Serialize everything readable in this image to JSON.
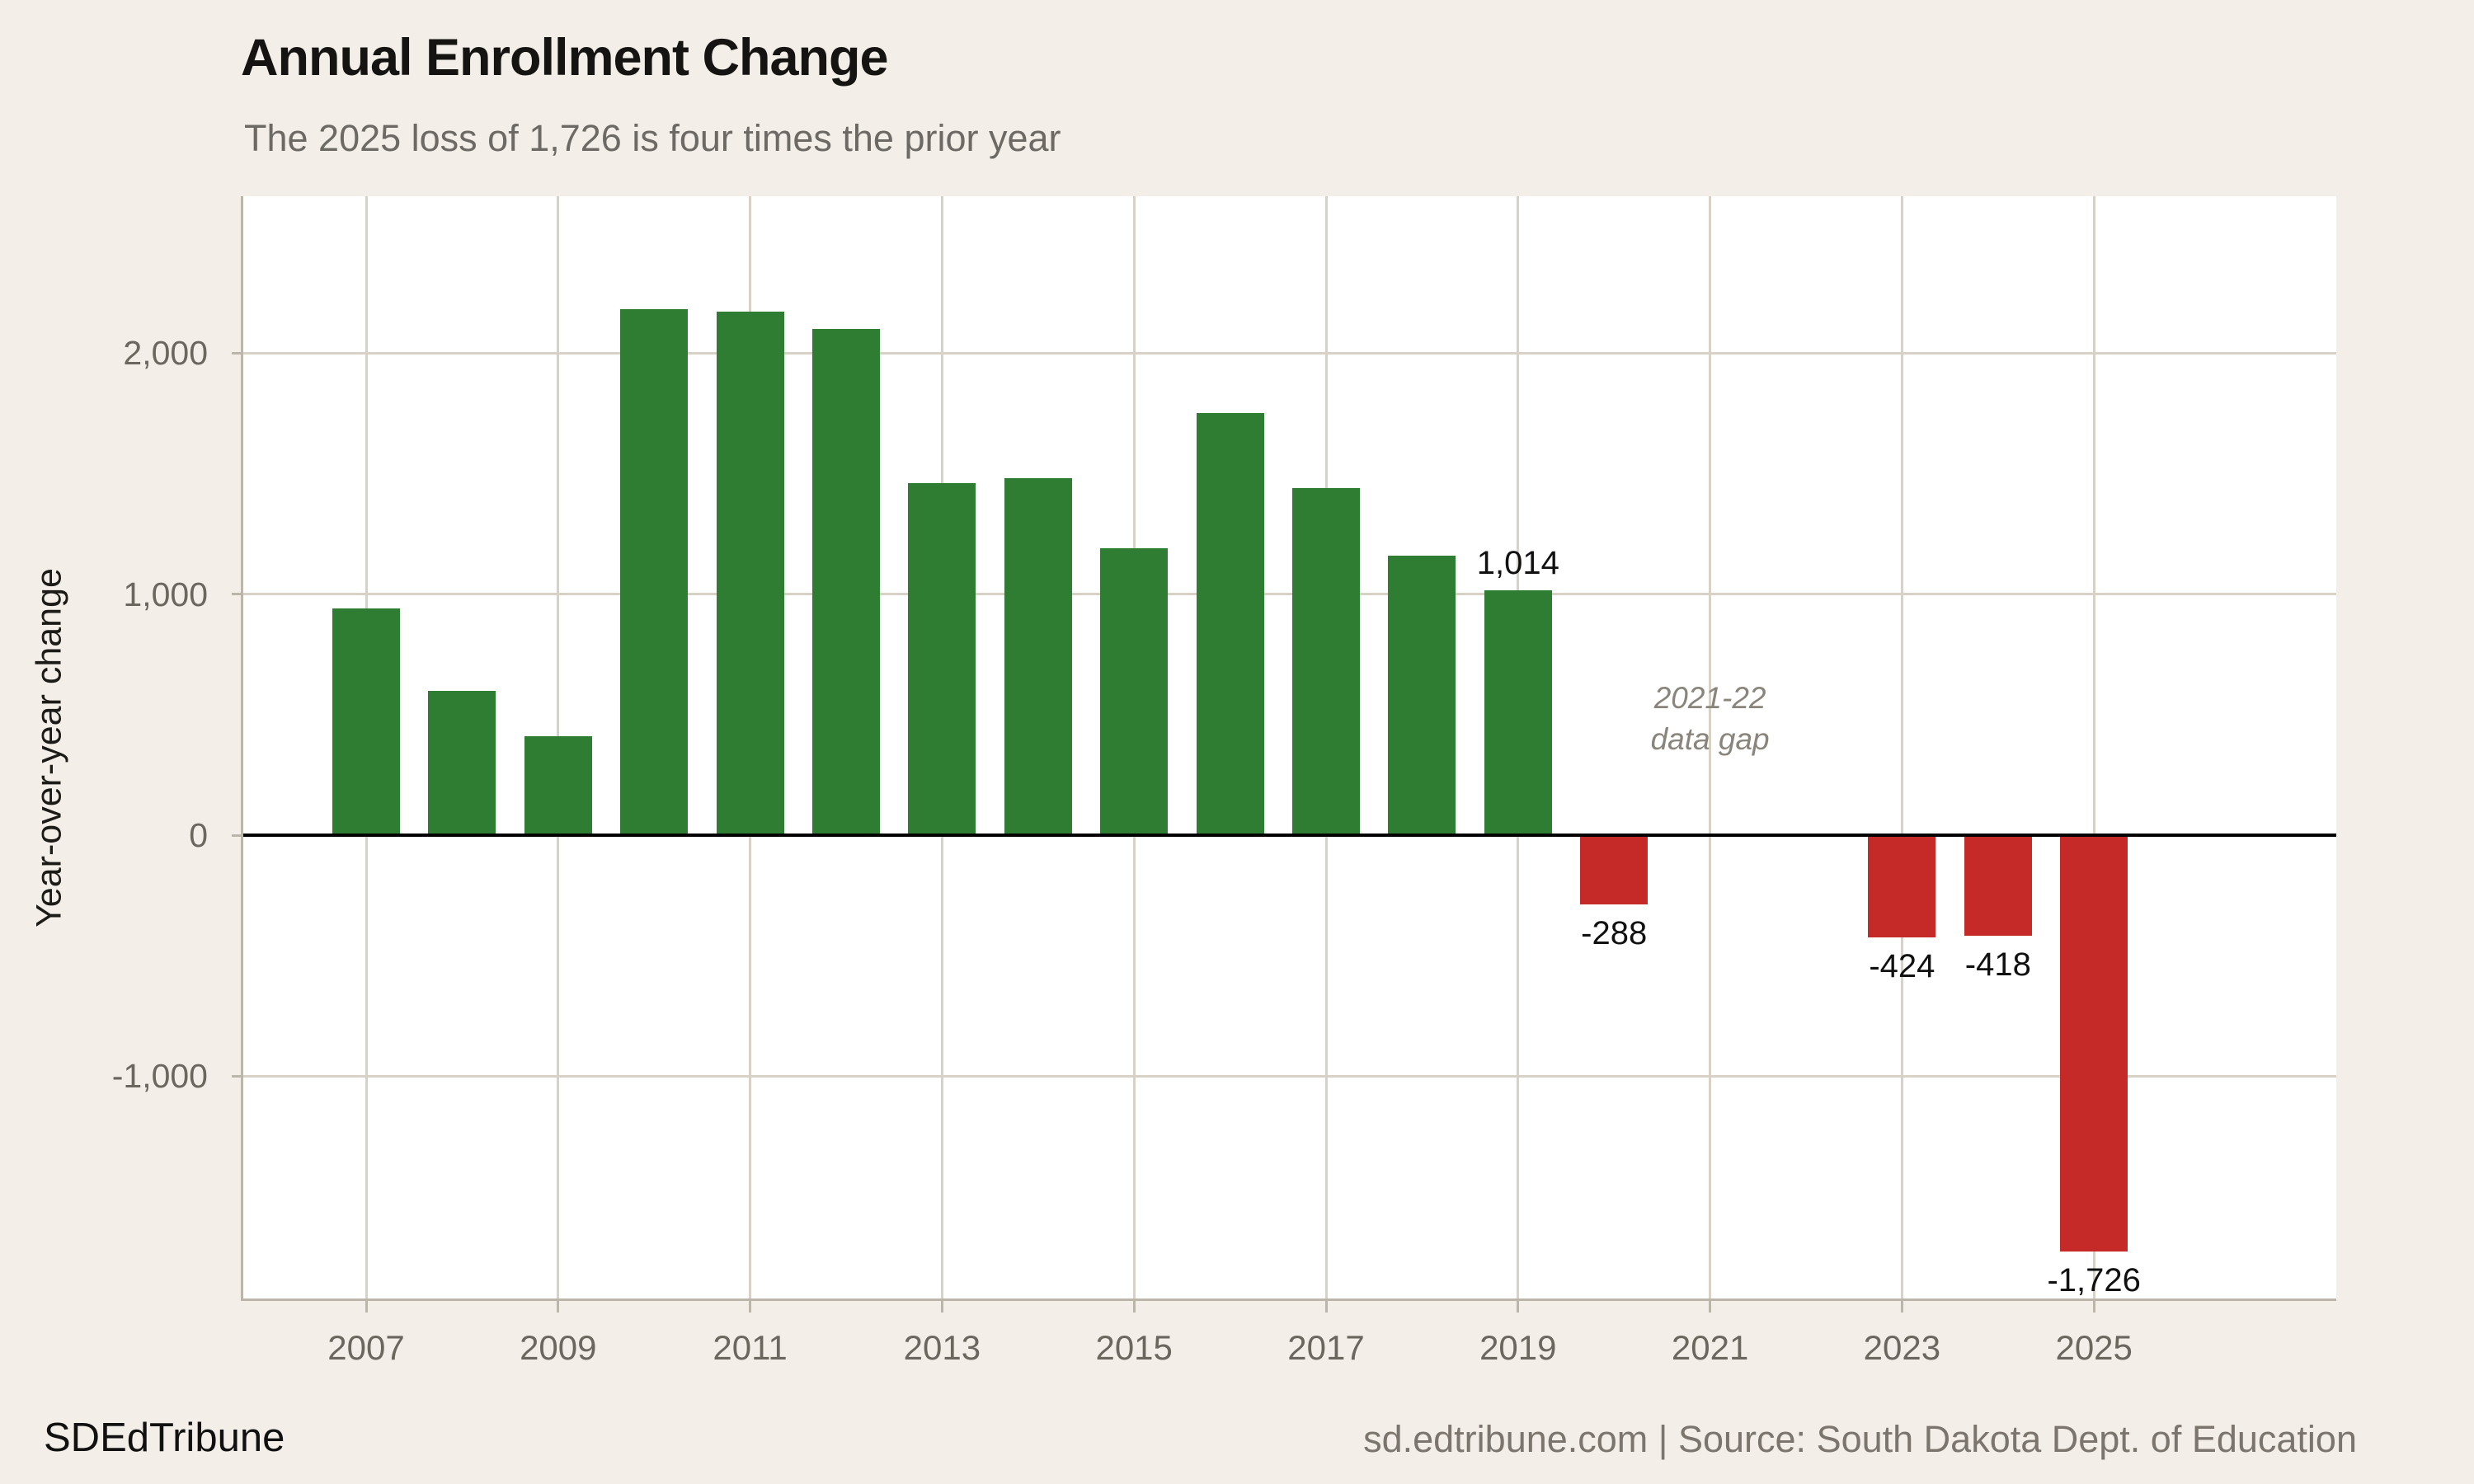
{
  "header": {
    "title": "Annual Enrollment Change",
    "subtitle": "The 2025 loss of 1,726 is four times the prior year"
  },
  "footer": {
    "brand": "SDEdTribune",
    "source": "sd.edtribune.com | Source: South Dakota Dept. of Education"
  },
  "annotation": {
    "line1": "2021-22",
    "line2": "data gap",
    "anchor_year": 2021
  },
  "colors": {
    "background": "#f3efe8",
    "plot_background": "#ffffff",
    "positive_bar": "#2e7d32",
    "negative_bar": "#c62a28",
    "gridline": "#d8d2c6",
    "spine": "#bcb5aa",
    "zero_line": "#000000",
    "title_text": "#161412",
    "subtitle_text": "#6d6a66",
    "tick_label": "#6b675f",
    "axis_title": "#1d1b18",
    "value_label": "#111111",
    "annotation_text": "#8a857b",
    "footer_brand": "#111111",
    "footer_source": "#7b756d"
  },
  "chart_data": {
    "type": "bar",
    "title": "Annual Enrollment Change",
    "subtitle": "The 2025 loss of 1,726 is four times the prior year",
    "xlabel": "",
    "ylabel": "Year-over-year change",
    "categories": [
      2007,
      2008,
      2009,
      2010,
      2011,
      2012,
      2013,
      2014,
      2015,
      2016,
      2017,
      2018,
      2019,
      2020,
      2021,
      2022,
      2023,
      2024,
      2025
    ],
    "values": [
      940,
      600,
      410,
      2180,
      2170,
      2100,
      1460,
      1480,
      1190,
      1750,
      1440,
      1160,
      1014,
      -288,
      null,
      null,
      -424,
      -418,
      -1726
    ],
    "data_labels": {
      "2019": "1,014",
      "2020": "-288",
      "2023": "-424",
      "2024": "-418",
      "2025": "-1,726"
    },
    "ylim": [
      -1925,
      2650
    ],
    "yticks": [
      {
        "value": 2000,
        "label": "2,000"
      },
      {
        "value": 1000,
        "label": "1,000"
      },
      {
        "value": 0,
        "label": "0"
      },
      {
        "value": -1000,
        "label": "-1,000"
      }
    ],
    "xticks": [
      {
        "year": 2007,
        "label": "2007"
      },
      {
        "year": 2009,
        "label": "2009"
      },
      {
        "year": 2011,
        "label": "2011"
      },
      {
        "year": 2013,
        "label": "2013"
      },
      {
        "year": 2015,
        "label": "2015"
      },
      {
        "year": 2017,
        "label": "2017"
      },
      {
        "year": 2019,
        "label": "2019"
      },
      {
        "year": 2021,
        "label": "2021"
      },
      {
        "year": 2023,
        "label": "2023"
      },
      {
        "year": 2025,
        "label": "2025"
      }
    ],
    "grid": true,
    "legend": "none",
    "missing_years_note": "2021-22 data gap"
  }
}
